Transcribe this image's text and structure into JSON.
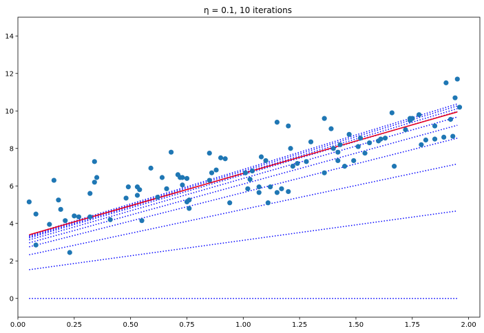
{
  "chart_data": {
    "type": "scatter",
    "title": "η = 0.1, 10 iterations",
    "xlabel": "",
    "ylabel": "",
    "xlim": [
      -0.0,
      2.05
    ],
    "ylim": [
      -1.0,
      15.0
    ],
    "xticks": [
      0.0,
      0.25,
      0.5,
      0.75,
      1.0,
      1.25,
      1.5,
      1.75,
      2.0
    ],
    "xtick_labels": [
      "0.00",
      "0.25",
      "0.50",
      "0.75",
      "1.00",
      "1.25",
      "1.50",
      "1.75",
      "2.00"
    ],
    "yticks": [
      0,
      2,
      4,
      6,
      8,
      10,
      12,
      14
    ],
    "ytick_labels": [
      "0",
      "2",
      "4",
      "6",
      "8",
      "10",
      "12",
      "14"
    ],
    "grid": false,
    "scatter_color": "#1f77b4",
    "points": [
      [
        0.05,
        5.15
      ],
      [
        0.08,
        4.5
      ],
      [
        0.08,
        2.85
      ],
      [
        0.14,
        3.95
      ],
      [
        0.16,
        6.3
      ],
      [
        0.18,
        5.25
      ],
      [
        0.19,
        4.75
      ],
      [
        0.21,
        4.15
      ],
      [
        0.23,
        2.45
      ],
      [
        0.25,
        4.4
      ],
      [
        0.27,
        4.35
      ],
      [
        0.32,
        4.35
      ],
      [
        0.32,
        5.6
      ],
      [
        0.34,
        7.3
      ],
      [
        0.34,
        6.2
      ],
      [
        0.35,
        6.45
      ],
      [
        0.41,
        4.2
      ],
      [
        0.48,
        5.35
      ],
      [
        0.49,
        5.95
      ],
      [
        0.53,
        5.95
      ],
      [
        0.53,
        5.5
      ],
      [
        0.54,
        5.8
      ],
      [
        0.55,
        4.15
      ],
      [
        0.59,
        6.95
      ],
      [
        0.62,
        5.4
      ],
      [
        0.64,
        6.45
      ],
      [
        0.66,
        5.85
      ],
      [
        0.68,
        7.8
      ],
      [
        0.71,
        6.6
      ],
      [
        0.72,
        6.45
      ],
      [
        0.73,
        6.05
      ],
      [
        0.73,
        6.45
      ],
      [
        0.75,
        6.4
      ],
      [
        0.75,
        5.15
      ],
      [
        0.76,
        5.25
      ],
      [
        0.76,
        4.8
      ],
      [
        0.85,
        7.75
      ],
      [
        0.85,
        6.3
      ],
      [
        0.86,
        6.7
      ],
      [
        0.88,
        6.85
      ],
      [
        0.9,
        7.5
      ],
      [
        0.92,
        7.45
      ],
      [
        0.94,
        5.1
      ],
      [
        1.01,
        6.7
      ],
      [
        1.02,
        5.85
      ],
      [
        1.03,
        6.35
      ],
      [
        1.04,
        6.8
      ],
      [
        1.07,
        5.65
      ],
      [
        1.07,
        5.95
      ],
      [
        1.08,
        7.55
      ],
      [
        1.1,
        7.35
      ],
      [
        1.11,
        5.1
      ],
      [
        1.12,
        5.95
      ],
      [
        1.15,
        9.4
      ],
      [
        1.15,
        5.65
      ],
      [
        1.17,
        5.85
      ],
      [
        1.2,
        9.2
      ],
      [
        1.2,
        5.7
      ],
      [
        1.21,
        8.0
      ],
      [
        1.22,
        7.05
      ],
      [
        1.24,
        7.2
      ],
      [
        1.28,
        7.3
      ],
      [
        1.3,
        8.35
      ],
      [
        1.36,
        9.6
      ],
      [
        1.36,
        6.7
      ],
      [
        1.39,
        9.05
      ],
      [
        1.4,
        8.0
      ],
      [
        1.42,
        7.8
      ],
      [
        1.42,
        7.35
      ],
      [
        1.43,
        8.2
      ],
      [
        1.45,
        7.05
      ],
      [
        1.47,
        8.75
      ],
      [
        1.49,
        7.35
      ],
      [
        1.51,
        8.1
      ],
      [
        1.52,
        8.55
      ],
      [
        1.54,
        7.75
      ],
      [
        1.56,
        8.3
      ],
      [
        1.6,
        8.4
      ],
      [
        1.61,
        8.5
      ],
      [
        1.63,
        8.55
      ],
      [
        1.66,
        9.9
      ],
      [
        1.67,
        7.05
      ],
      [
        1.72,
        9.0
      ],
      [
        1.74,
        9.5
      ],
      [
        1.74,
        9.6
      ],
      [
        1.75,
        9.6
      ],
      [
        1.78,
        9.8
      ],
      [
        1.79,
        8.2
      ],
      [
        1.81,
        8.45
      ],
      [
        1.85,
        8.5
      ],
      [
        1.85,
        9.2
      ],
      [
        1.89,
        8.6
      ],
      [
        1.9,
        11.5
      ],
      [
        1.92,
        9.55
      ],
      [
        1.93,
        8.65
      ],
      [
        1.94,
        10.7
      ],
      [
        1.95,
        11.7
      ],
      [
        1.96,
        10.2
      ]
    ],
    "x_range": [
      0.05,
      1.95
    ],
    "iteration_lines": {
      "color": "#0000ff",
      "style": "dotted",
      "lines": [
        [
          0.0,
          0.0
        ],
        [
          1.45,
          1.65
        ],
        [
          2.2,
          2.55
        ],
        [
          2.6,
          3.05
        ],
        [
          2.8,
          3.3
        ],
        [
          2.95,
          3.45
        ],
        [
          3.05,
          3.55
        ],
        [
          3.1,
          3.6
        ],
        [
          3.15,
          3.65
        ],
        [
          3.2,
          3.68
        ]
      ]
    },
    "final_line": {
      "color": "#e8001c",
      "style": "solid",
      "intercept": 3.22,
      "slope": 3.45
    }
  }
}
